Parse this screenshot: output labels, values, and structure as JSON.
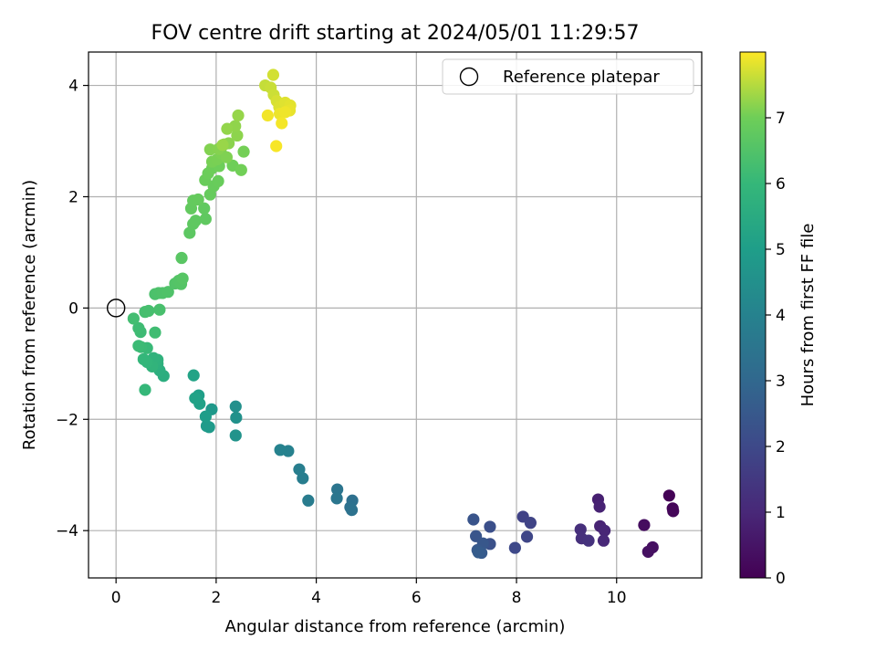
{
  "chart_data": {
    "type": "scatter",
    "title": "FOV centre drift starting at 2024/05/01 11:29:57",
    "xlabel": "Angular distance from reference (arcmin)",
    "ylabel": "Rotation from reference (arcmin)",
    "xlim": [
      -0.55,
      11.7
    ],
    "ylim": [
      -4.85,
      4.6
    ],
    "xticks": [
      0,
      2,
      4,
      6,
      8,
      10
    ],
    "yticks": [
      -4,
      -2,
      0,
      2,
      4
    ],
    "grid": true,
    "legend": {
      "position": "upper right",
      "label": "Reference platepar"
    },
    "reference_point": {
      "x": 0,
      "y": 0
    },
    "colorbar": {
      "label": "Hours from first FF file",
      "range": [
        0,
        8
      ],
      "ticks": [
        0,
        1,
        2,
        3,
        4,
        5,
        6,
        7
      ],
      "colormap": "viridis"
    },
    "series": [
      {
        "points": [
          {
            "x": 11.05,
            "y": -3.37,
            "t": 0.05
          },
          {
            "x": 11.12,
            "y": -3.6,
            "t": 0.1
          },
          {
            "x": 11.13,
            "y": -3.65,
            "t": 0.15
          },
          {
            "x": 10.55,
            "y": -3.9,
            "t": 0.3
          },
          {
            "x": 10.72,
            "y": -4.3,
            "t": 0.35
          },
          {
            "x": 10.63,
            "y": -4.38,
            "t": 0.4
          },
          {
            "x": 9.63,
            "y": -3.44,
            "t": 0.8
          },
          {
            "x": 9.66,
            "y": -3.57,
            "t": 0.85
          },
          {
            "x": 9.67,
            "y": -3.92,
            "t": 0.9
          },
          {
            "x": 9.76,
            "y": -4.0,
            "t": 0.95
          },
          {
            "x": 9.74,
            "y": -4.18,
            "t": 1.0
          },
          {
            "x": 9.28,
            "y": -3.98,
            "t": 1.2
          },
          {
            "x": 9.3,
            "y": -4.14,
            "t": 1.25
          },
          {
            "x": 9.44,
            "y": -4.18,
            "t": 1.3
          },
          {
            "x": 8.13,
            "y": -3.75,
            "t": 1.8
          },
          {
            "x": 8.28,
            "y": -3.86,
            "t": 1.85
          },
          {
            "x": 8.21,
            "y": -4.11,
            "t": 1.9
          },
          {
            "x": 7.97,
            "y": -4.31,
            "t": 2.0
          },
          {
            "x": 7.47,
            "y": -3.93,
            "t": 2.2
          },
          {
            "x": 7.47,
            "y": -4.24,
            "t": 2.25
          },
          {
            "x": 7.14,
            "y": -3.8,
            "t": 2.35
          },
          {
            "x": 7.19,
            "y": -4.1,
            "t": 2.4
          },
          {
            "x": 7.33,
            "y": -4.23,
            "t": 2.45
          },
          {
            "x": 7.22,
            "y": -4.35,
            "t": 2.5
          },
          {
            "x": 7.3,
            "y": -4.4,
            "t": 2.55
          },
          {
            "x": 7.24,
            "y": -4.39,
            "t": 2.6
          },
          {
            "x": 4.72,
            "y": -3.46,
            "t": 3.3
          },
          {
            "x": 4.68,
            "y": -3.58,
            "t": 3.35
          },
          {
            "x": 4.71,
            "y": -3.63,
            "t": 3.4
          },
          {
            "x": 4.42,
            "y": -3.26,
            "t": 3.5
          },
          {
            "x": 4.41,
            "y": -3.42,
            "t": 3.55
          },
          {
            "x": 3.84,
            "y": -3.46,
            "t": 3.75
          },
          {
            "x": 3.73,
            "y": -3.06,
            "t": 3.8
          },
          {
            "x": 3.66,
            "y": -2.9,
            "t": 3.85
          },
          {
            "x": 3.44,
            "y": -2.57,
            "t": 3.95
          },
          {
            "x": 3.28,
            "y": -2.55,
            "t": 4.0
          },
          {
            "x": 2.39,
            "y": -1.77,
            "t": 4.5
          },
          {
            "x": 2.4,
            "y": -1.97,
            "t": 4.55
          },
          {
            "x": 2.39,
            "y": -2.29,
            "t": 4.6
          },
          {
            "x": 1.91,
            "y": -1.82,
            "t": 4.8
          },
          {
            "x": 1.86,
            "y": -2.14,
            "t": 4.85
          },
          {
            "x": 1.81,
            "y": -2.12,
            "t": 4.9
          },
          {
            "x": 1.79,
            "y": -1.95,
            "t": 4.95
          },
          {
            "x": 1.65,
            "y": -1.57,
            "t": 5.05
          },
          {
            "x": 1.67,
            "y": -1.72,
            "t": 5.1
          },
          {
            "x": 1.58,
            "y": -1.62,
            "t": 5.15
          },
          {
            "x": 1.55,
            "y": -1.21,
            "t": 5.2
          },
          {
            "x": 0.95,
            "y": -1.22,
            "t": 5.6
          },
          {
            "x": 0.87,
            "y": -1.12,
            "t": 5.65
          },
          {
            "x": 0.83,
            "y": -1.0,
            "t": 5.7
          },
          {
            "x": 0.83,
            "y": -0.93,
            "t": 5.75
          },
          {
            "x": 0.75,
            "y": -0.9,
            "t": 5.8
          },
          {
            "x": 0.72,
            "y": -1.05,
            "t": 5.85
          },
          {
            "x": 0.62,
            "y": -0.97,
            "t": 5.9
          },
          {
            "x": 0.55,
            "y": -0.92,
            "t": 5.95
          },
          {
            "x": 0.58,
            "y": -1.47,
            "t": 6.0
          },
          {
            "x": 0.62,
            "y": -0.72,
            "t": 6.05
          },
          {
            "x": 0.5,
            "y": -0.7,
            "t": 6.1
          },
          {
            "x": 0.45,
            "y": -0.68,
            "t": 6.12
          },
          {
            "x": 0.49,
            "y": -0.43,
            "t": 6.15
          },
          {
            "x": 0.45,
            "y": -0.36,
            "t": 6.18
          },
          {
            "x": 0.78,
            "y": -0.44,
            "t": 6.2
          },
          {
            "x": 0.35,
            "y": -0.19,
            "t": 6.25
          },
          {
            "x": 0.58,
            "y": -0.07,
            "t": 6.3
          },
          {
            "x": 0.65,
            "y": -0.05,
            "t": 6.32
          },
          {
            "x": 0.87,
            "y": -0.03,
            "t": 6.35
          },
          {
            "x": 0.78,
            "y": 0.25,
            "t": 6.4
          },
          {
            "x": 0.85,
            "y": 0.27,
            "t": 6.42
          },
          {
            "x": 0.93,
            "y": 0.27,
            "t": 6.45
          },
          {
            "x": 1.04,
            "y": 0.29,
            "t": 6.48
          },
          {
            "x": 1.18,
            "y": 0.44,
            "t": 6.52
          },
          {
            "x": 1.25,
            "y": 0.49,
            "t": 6.55
          },
          {
            "x": 1.3,
            "y": 0.43,
            "t": 6.57
          },
          {
            "x": 1.33,
            "y": 0.53,
            "t": 6.6
          },
          {
            "x": 1.31,
            "y": 0.9,
            "t": 6.65
          },
          {
            "x": 1.47,
            "y": 1.35,
            "t": 6.7
          },
          {
            "x": 1.54,
            "y": 1.51,
            "t": 6.72
          },
          {
            "x": 1.59,
            "y": 1.57,
            "t": 6.74
          },
          {
            "x": 1.79,
            "y": 1.6,
            "t": 6.76
          },
          {
            "x": 1.76,
            "y": 1.79,
            "t": 6.78
          },
          {
            "x": 1.5,
            "y": 1.79,
            "t": 6.8
          },
          {
            "x": 1.54,
            "y": 1.93,
            "t": 6.82
          },
          {
            "x": 1.64,
            "y": 1.95,
            "t": 6.84
          },
          {
            "x": 1.88,
            "y": 2.04,
            "t": 6.86
          },
          {
            "x": 1.95,
            "y": 2.19,
            "t": 6.88
          },
          {
            "x": 2.04,
            "y": 2.28,
            "t": 6.9
          },
          {
            "x": 1.78,
            "y": 2.3,
            "t": 6.92
          },
          {
            "x": 1.84,
            "y": 2.42,
            "t": 6.94
          },
          {
            "x": 1.92,
            "y": 2.51,
            "t": 6.96
          },
          {
            "x": 2.06,
            "y": 2.55,
            "t": 6.98
          },
          {
            "x": 2.33,
            "y": 2.56,
            "t": 7.0
          },
          {
            "x": 2.5,
            "y": 2.48,
            "t": 7.02
          },
          {
            "x": 2.55,
            "y": 2.81,
            "t": 7.04
          },
          {
            "x": 1.92,
            "y": 2.63,
            "t": 7.06
          },
          {
            "x": 2.02,
            "y": 2.67,
            "t": 7.08
          },
          {
            "x": 2.1,
            "y": 2.78,
            "t": 7.1
          },
          {
            "x": 2.21,
            "y": 2.71,
            "t": 7.12
          },
          {
            "x": 1.88,
            "y": 2.85,
            "t": 7.14
          },
          {
            "x": 2.05,
            "y": 2.86,
            "t": 7.16
          },
          {
            "x": 2.16,
            "y": 2.94,
            "t": 7.18
          },
          {
            "x": 2.25,
            "y": 2.96,
            "t": 7.2
          },
          {
            "x": 2.42,
            "y": 3.1,
            "t": 7.22
          },
          {
            "x": 2.38,
            "y": 3.27,
            "t": 7.24
          },
          {
            "x": 2.22,
            "y": 3.22,
            "t": 7.26
          },
          {
            "x": 2.44,
            "y": 3.46,
            "t": 7.28
          },
          {
            "x": 2.13,
            "y": 2.93,
            "t": 7.3
          },
          {
            "x": 2.98,
            "y": 4.0,
            "t": 7.6
          },
          {
            "x": 3.09,
            "y": 3.96,
            "t": 7.63
          },
          {
            "x": 3.15,
            "y": 3.83,
            "t": 7.66
          },
          {
            "x": 3.14,
            "y": 4.19,
            "t": 7.7
          },
          {
            "x": 3.21,
            "y": 3.72,
            "t": 7.73
          },
          {
            "x": 3.26,
            "y": 3.61,
            "t": 7.76
          },
          {
            "x": 3.38,
            "y": 3.69,
            "t": 7.79
          },
          {
            "x": 3.48,
            "y": 3.64,
            "t": 7.82
          },
          {
            "x": 3.47,
            "y": 3.55,
            "t": 7.85
          },
          {
            "x": 3.27,
            "y": 3.49,
            "t": 7.88
          },
          {
            "x": 3.38,
            "y": 3.52,
            "t": 7.9
          },
          {
            "x": 3.03,
            "y": 3.46,
            "t": 7.92
          },
          {
            "x": 3.31,
            "y": 3.32,
            "t": 7.94
          },
          {
            "x": 3.2,
            "y": 2.91,
            "t": 7.96
          }
        ]
      }
    ]
  }
}
